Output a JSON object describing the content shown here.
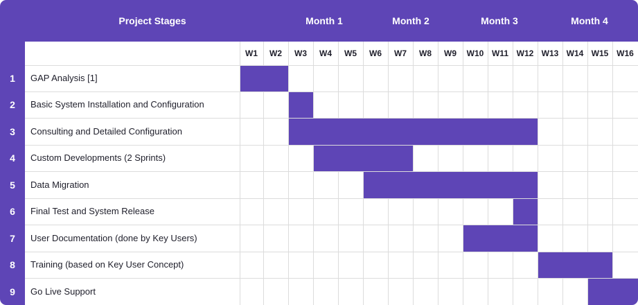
{
  "header": {
    "stages_label": "Project Stages",
    "months": [
      "Month 1",
      "Month 2",
      "Month 3",
      "Month 4"
    ]
  },
  "weeks": [
    "W1",
    "W2",
    "W3",
    "W4",
    "W5",
    "W6",
    "W7",
    "W8",
    "W9",
    "W10",
    "W11",
    "W12",
    "W13",
    "W14",
    "W15",
    "W16"
  ],
  "tasks": [
    {
      "num": "1",
      "name": "GAP Analysis [1]",
      "start": 1,
      "end": 2
    },
    {
      "num": "2",
      "name": "Basic System Installation and Configuration",
      "start": 3,
      "end": 3
    },
    {
      "num": "3",
      "name": "Consulting and Detailed Configuration",
      "start": 3,
      "end": 12
    },
    {
      "num": "4",
      "name": "Custom Developments (2 Sprints)",
      "start": 4,
      "end": 7
    },
    {
      "num": "5",
      "name": "Data Migration",
      "start": 6,
      "end": 12
    },
    {
      "num": "6",
      "name": "Final Test and System Release",
      "start": 12,
      "end": 12
    },
    {
      "num": "7",
      "name": "User Documentation (done by Key Users)",
      "start": 10,
      "end": 12
    },
    {
      "num": "8",
      "name": "Training (based on Key User Concept)",
      "start": 13,
      "end": 15
    },
    {
      "num": "9",
      "name": "Go Live Support",
      "start": 15,
      "end": 16
    }
  ],
  "colors": {
    "accent": "#5e45b6",
    "grid": "#dcdcdc",
    "text": "#1e1e2a"
  }
}
